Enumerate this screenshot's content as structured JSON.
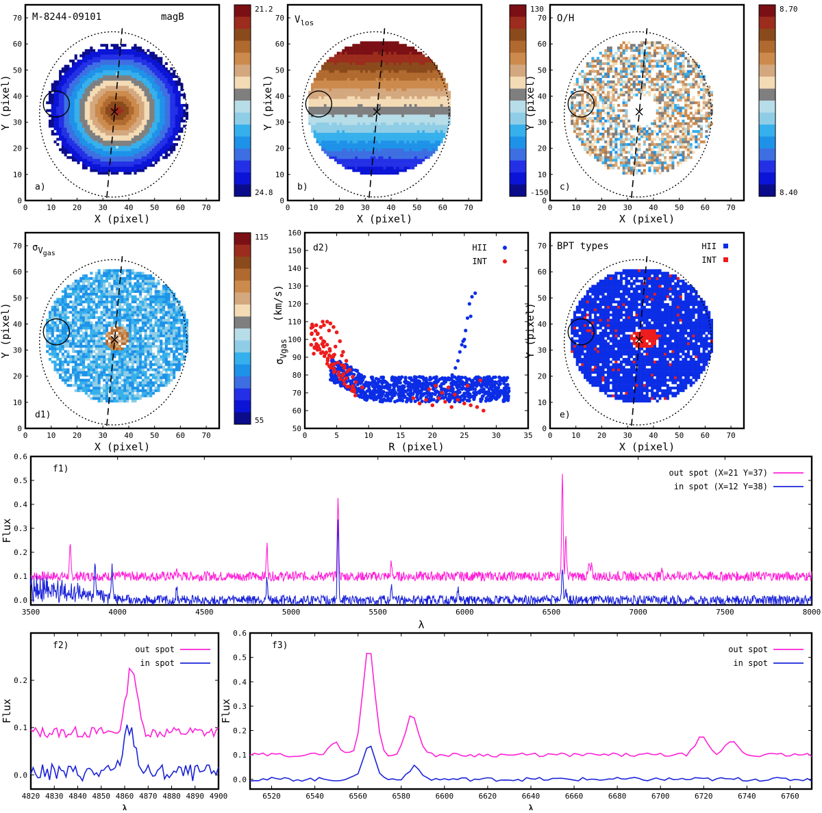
{
  "figure": {
    "galaxy_id": "M-8244-09101",
    "ylabel_map": "Y   (pixel)",
    "xlabel_map": "X   (pixel)",
    "map_ticks": [
      "0",
      "10",
      "20",
      "30",
      "40",
      "50",
      "60",
      "70"
    ]
  },
  "panel_a": {
    "tag": "a)",
    "title": "magB",
    "cb_top": "21.2",
    "cb_bottom": "24.8"
  },
  "panel_b": {
    "tag": "b)",
    "title": "V",
    "title_sub": "los",
    "cb_top": "130",
    "cb_bottom": "-150"
  },
  "panel_c": {
    "tag": "c)",
    "title": "O/H",
    "cb_top": "8.70",
    "cb_bottom": "8.40"
  },
  "panel_d1": {
    "tag": "d1)",
    "title": "σ",
    "title_sub": "V",
    "title_subsub": "gas",
    "cb_top": "115",
    "cb_bottom": "55"
  },
  "panel_e": {
    "tag": "e)",
    "title": "BPT types",
    "legend": [
      "HII",
      "INT"
    ]
  },
  "colors": {
    "hii": "#0b2de6",
    "int": "#ee1c1c",
    "out_spot": "#ff20d8",
    "in_spot": "#1a22d8",
    "colorbar": [
      "#7a0f14",
      "#9c2c1d",
      "#8b4a1c",
      "#b06a2f",
      "#cc8a4c",
      "#d4a87f",
      "#f3dbb5",
      "#7f7f7f",
      "#b7dde8",
      "#8fcde6",
      "#36b0ec",
      "#1e92e8",
      "#3d6fe2",
      "#2330e6",
      "#0b14d6",
      "#0a0c8a"
    ]
  },
  "chart_data": [
    {
      "id": "d2",
      "type": "scatter",
      "tag": "d2)",
      "xlabel": "R    (pixel)",
      "ylabel": "σ",
      "ylabel_sub": "Vgas",
      "ylabel_unit": "(km/s)",
      "xlim": [
        0,
        35
      ],
      "ylim": [
        50,
        160
      ],
      "xticks": [
        0,
        5,
        10,
        15,
        20,
        25,
        30,
        35
      ],
      "yticks": [
        50,
        60,
        70,
        80,
        90,
        100,
        110,
        120,
        130,
        140,
        150,
        160
      ],
      "legend": "top-right",
      "series": [
        {
          "name": "HII",
          "color": "#0b2de6",
          "points": [
            [
              24.3,
              93
            ],
            [
              24.6,
              97
            ],
            [
              25.0,
              100
            ],
            [
              25.2,
              105
            ],
            [
              25.5,
              112
            ],
            [
              25.8,
              120
            ],
            [
              26.2,
              124
            ],
            [
              26.7,
              126
            ],
            [
              24.0,
              88
            ],
            [
              23.6,
              84
            ],
            [
              23.1,
              80
            ],
            [
              22.8,
              78
            ],
            [
              25.1,
              96
            ],
            [
              24.8,
              99
            ],
            [
              26.0,
              113
            ]
          ]
        },
        {
          "name": "INT",
          "color": "#ee1c1c",
          "points": [
            [
              1.0,
              97
            ],
            [
              1.5,
              100
            ],
            [
              2.0,
              103
            ],
            [
              2.5,
              107
            ],
            [
              3.0,
              108
            ],
            [
              3.5,
              110
            ],
            [
              4.0,
              109
            ],
            [
              4.5,
              107
            ],
            [
              5.0,
              104
            ],
            [
              5.5,
              99
            ],
            [
              6.0,
              93
            ],
            [
              6.5,
              88
            ],
            [
              7.0,
              83
            ],
            [
              7.5,
              79
            ],
            [
              8.0,
              76
            ],
            [
              9.0,
              73
            ],
            [
              2.2,
              95
            ],
            [
              3.2,
              92
            ],
            [
              4.2,
              90
            ],
            [
              5.2,
              87
            ],
            [
              6.2,
              84
            ],
            [
              1.4,
              92
            ],
            [
              1.8,
              108
            ],
            [
              2.8,
              110
            ],
            [
              3.8,
              105
            ],
            [
              4.8,
              96
            ],
            [
              5.8,
              91
            ],
            [
              17.0,
              67
            ],
            [
              18.0,
              64
            ],
            [
              19.0,
              66
            ],
            [
              20.0,
              63
            ],
            [
              21.0,
              67
            ],
            [
              22.0,
              65
            ],
            [
              23.0,
              62
            ],
            [
              24.0,
              66
            ],
            [
              25.0,
              64
            ],
            [
              26.0,
              63
            ],
            [
              27.0,
              62
            ],
            [
              28.0,
              60
            ],
            [
              19.5,
              72
            ],
            [
              21.5,
              70
            ],
            [
              23.5,
              69
            ],
            [
              25.5,
              74
            ],
            [
              27.5,
              77
            ],
            [
              20.5,
              74
            ],
            [
              22.5,
              73
            ]
          ]
        }
      ]
    },
    {
      "id": "f1",
      "type": "line",
      "tag": "f1)",
      "xlabel": "λ",
      "ylabel": "Flux",
      "xlim": [
        3500,
        8000
      ],
      "ylim": [
        -0.02,
        0.6
      ],
      "xticks": [
        3500,
        4000,
        4500,
        5000,
        5500,
        6000,
        6500,
        7000,
        7500,
        8000
      ],
      "yticks": [
        0.0,
        0.1,
        0.2,
        0.3,
        0.4,
        0.5,
        0.6
      ],
      "legend": "top-right",
      "series": [
        {
          "name": "out spot (X=21 Y=37)",
          "color": "#ff20d8",
          "baseline": 0.1,
          "noise": 0.02,
          "peaks": [
            [
              3727,
              0.22
            ],
            [
              4340,
              0.13
            ],
            [
              4861,
              0.23
            ],
            [
              5270,
              0.42
            ],
            [
              5577,
              0.15
            ],
            [
              6563,
              0.54
            ],
            [
              6583,
              0.27
            ],
            [
              6717,
              0.15
            ],
            [
              6731,
              0.14
            ],
            [
              7135,
              0.13
            ]
          ]
        },
        {
          "name": "in spot (X=12 Y=38)",
          "color": "#1a22d8",
          "baseline": 0.0,
          "noise": 0.02,
          "peaks": [
            [
              3870,
              0.14
            ],
            [
              3969,
              0.12
            ],
            [
              4340,
              0.05
            ],
            [
              4861,
              0.09
            ],
            [
              5270,
              0.32
            ],
            [
              5577,
              0.06
            ],
            [
              5960,
              0.05
            ],
            [
              6563,
              0.14
            ],
            [
              6583,
              0.05
            ]
          ]
        }
      ]
    },
    {
      "id": "f2",
      "type": "line",
      "tag": "f2)",
      "xlabel": "λ",
      "ylabel": "Flux",
      "xlim": [
        4820,
        4900
      ],
      "ylim": [
        -0.03,
        0.3
      ],
      "xticks": [
        4820,
        4830,
        4840,
        4850,
        4860,
        4870,
        4880,
        4890,
        4900
      ],
      "yticks": [
        0.0,
        0.1,
        0.2
      ],
      "legend": "top-right",
      "series": [
        {
          "name": "out spot",
          "color": "#ff20d8",
          "baseline": 0.09,
          "noise": 0.012,
          "peaks": [
            [
              4863,
              0.23
            ]
          ],
          "width": 2.2
        },
        {
          "name": "in spot",
          "color": "#1a22d8",
          "baseline": 0.005,
          "noise": 0.018,
          "peaks": [
            [
              4862,
              0.1
            ]
          ],
          "width": 2.5
        }
      ]
    },
    {
      "id": "f3",
      "type": "line",
      "tag": "f3)",
      "xlabel": "λ",
      "ylabel": "Flux",
      "xlim": [
        6510,
        6770
      ],
      "ylim": [
        -0.04,
        0.6
      ],
      "xticks": [
        6520,
        6540,
        6560,
        6580,
        6600,
        6620,
        6640,
        6660,
        6680,
        6700,
        6720,
        6740,
        6760
      ],
      "yticks": [
        0.0,
        0.1,
        0.2,
        0.3,
        0.4,
        0.5,
        0.6
      ],
      "legend": "top-right",
      "series": [
        {
          "name": "out spot",
          "color": "#ff20d8",
          "baseline": 0.1,
          "noise": 0.008,
          "peaks": [
            [
              6549,
              0.15
            ],
            [
              6565,
              0.54
            ],
            [
              6585,
              0.27
            ],
            [
              6719,
              0.17
            ],
            [
              6733,
              0.16
            ]
          ],
          "width": 2.8
        },
        {
          "name": "in spot",
          "color": "#1a22d8",
          "baseline": 0.0,
          "noise": 0.008,
          "peaks": [
            [
              6565,
              0.14
            ],
            [
              6586,
              0.05
            ]
          ],
          "width": 2.8
        }
      ]
    }
  ]
}
